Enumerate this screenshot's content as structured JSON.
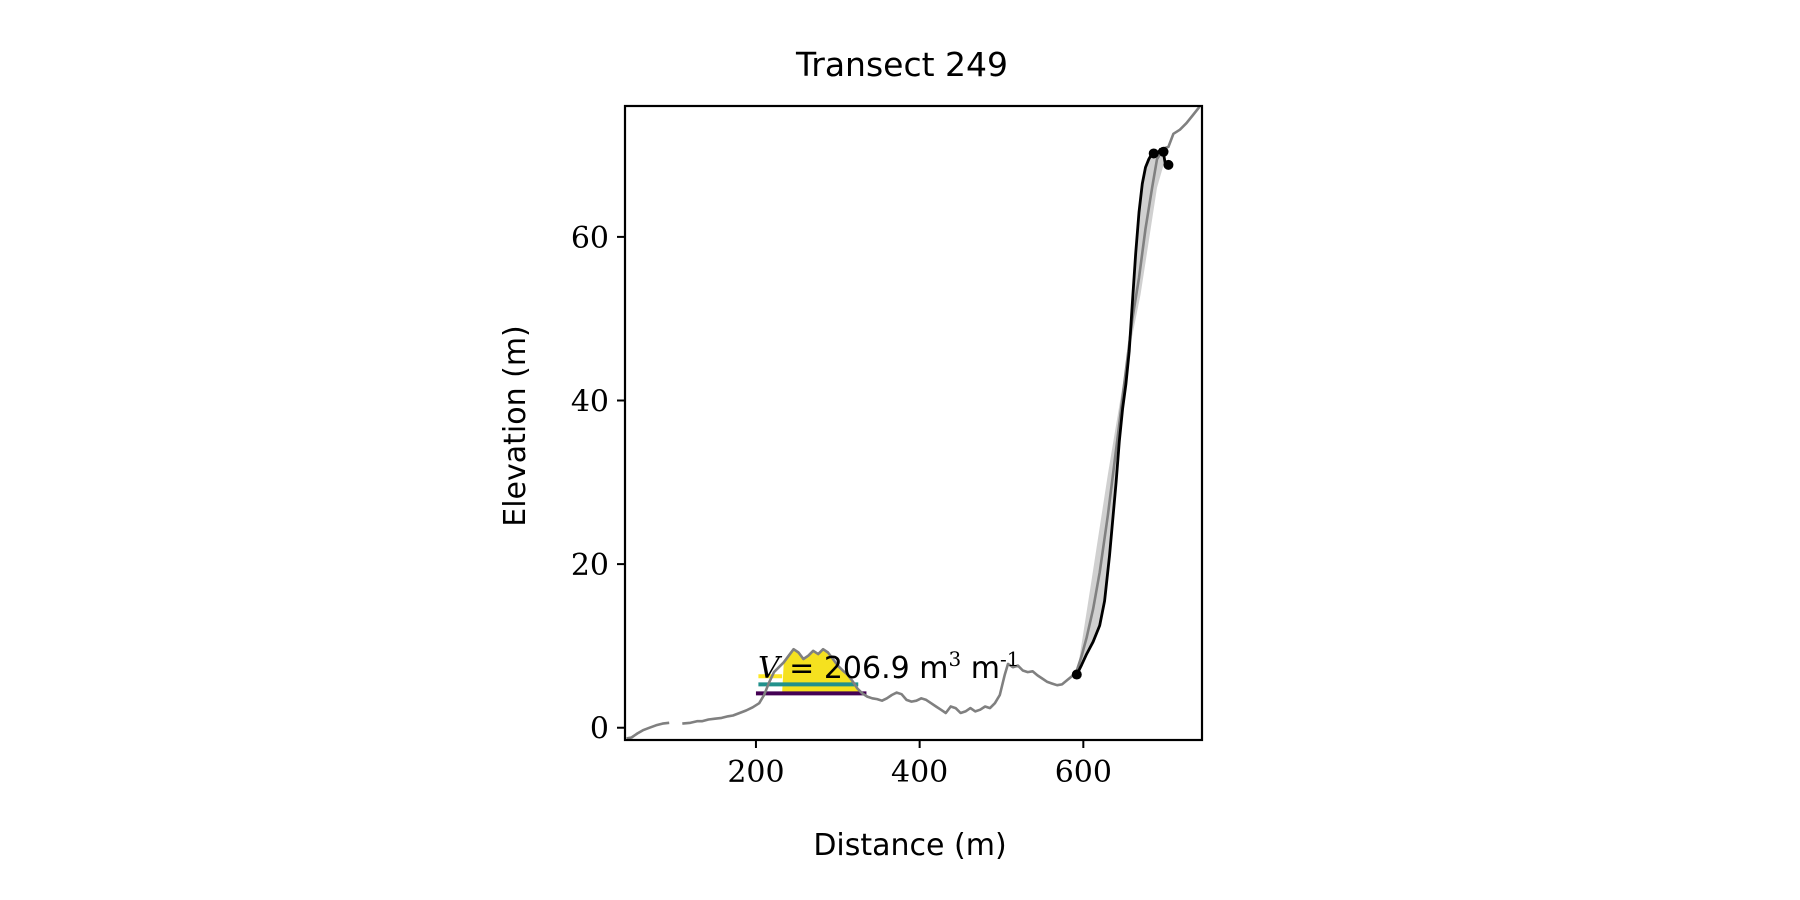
{
  "chart_data": {
    "type": "line",
    "title": "Transect 249",
    "xlabel": "Distance (m)",
    "ylabel": "Elevation (m)",
    "xlim": [
      40,
      745
    ],
    "ylim": [
      -1.5,
      76
    ],
    "xticks": [
      200,
      400,
      600
    ],
    "yticks": [
      0,
      20,
      40,
      60
    ],
    "grid": false,
    "annotation": {
      "symbol": "V",
      "value_text": " = 206.9 m",
      "unit_exp": "3",
      "mid": " m",
      "unit_exp2": "-1",
      "x": 200,
      "y": 6.3
    },
    "colors": {
      "profile": "#808080",
      "cliff": "#000000",
      "fill_area": "#d0d0d0",
      "dune_fill": "#f5e11f",
      "level_yellow": "#fde725",
      "level_teal": "#21918c",
      "level_purple": "#440154"
    },
    "profile_segments": [
      [
        [
          42,
          -1.3
        ],
        [
          48,
          -1.2
        ],
        [
          55,
          -0.7
        ],
        [
          62,
          -0.3
        ],
        [
          70,
          0
        ],
        [
          78,
          0.3
        ],
        [
          86,
          0.5
        ],
        [
          94,
          0.6
        ]
      ],
      [
        [
          110,
          0.5
        ],
        [
          120,
          0.6
        ],
        [
          128,
          0.8
        ],
        [
          134,
          0.8
        ],
        [
          142,
          1
        ],
        [
          150,
          1.1
        ],
        [
          158,
          1.2
        ],
        [
          166,
          1.4
        ],
        [
          172,
          1.5
        ],
        [
          180,
          1.8
        ],
        [
          188,
          2.1
        ],
        [
          196,
          2.5
        ],
        [
          204,
          3
        ],
        [
          210,
          4
        ],
        [
          216,
          5.5
        ],
        [
          222,
          6.8
        ],
        [
          228,
          7.4
        ],
        [
          234,
          8
        ],
        [
          240,
          8.8
        ],
        [
          246,
          9.6
        ],
        [
          252,
          9.2
        ],
        [
          258,
          8.4
        ],
        [
          264,
          8.8
        ],
        [
          270,
          9.4
        ],
        [
          276,
          9
        ],
        [
          282,
          9.6
        ],
        [
          288,
          9.2
        ],
        [
          294,
          8.4
        ],
        [
          300,
          7.6
        ],
        [
          306,
          7
        ],
        [
          312,
          6.5
        ],
        [
          318,
          5.7
        ],
        [
          324,
          4.8
        ],
        [
          330,
          4.2
        ],
        [
          336,
          3.8
        ],
        [
          342,
          3.6
        ],
        [
          348,
          3.5
        ],
        [
          354,
          3.3
        ],
        [
          360,
          3.6
        ],
        [
          366,
          4
        ],
        [
          372,
          4.3
        ],
        [
          378,
          4.1
        ],
        [
          384,
          3.4
        ],
        [
          390,
          3.2
        ],
        [
          396,
          3.3
        ],
        [
          402,
          3.6
        ],
        [
          408,
          3.4
        ],
        [
          414,
          3
        ],
        [
          420,
          2.6
        ],
        [
          426,
          2.2
        ],
        [
          432,
          1.8
        ],
        [
          438,
          2.6
        ],
        [
          444,
          2.4
        ],
        [
          450,
          1.8
        ],
        [
          456,
          2
        ],
        [
          462,
          2.4
        ],
        [
          468,
          2
        ],
        [
          474,
          2.2
        ],
        [
          480,
          2.6
        ],
        [
          486,
          2.4
        ],
        [
          492,
          3
        ],
        [
          498,
          4
        ],
        [
          504,
          6.5
        ],
        [
          508,
          7.8
        ],
        [
          514,
          7.4
        ],
        [
          520,
          7.6
        ],
        [
          526,
          7
        ],
        [
          532,
          6.8
        ],
        [
          538,
          6.9
        ],
        [
          544,
          6.4
        ],
        [
          550,
          6
        ],
        [
          556,
          5.6
        ],
        [
          562,
          5.4
        ],
        [
          568,
          5.2
        ],
        [
          574,
          5.3
        ],
        [
          580,
          5.8
        ],
        [
          586,
          6.3
        ],
        [
          592,
          7
        ],
        [
          598,
          8.8
        ],
        [
          604,
          11
        ],
        [
          612,
          14.5
        ],
        [
          620,
          19
        ],
        [
          630,
          26
        ],
        [
          640,
          34
        ],
        [
          650,
          42
        ],
        [
          660,
          50
        ],
        [
          668,
          55
        ],
        [
          676,
          61
        ],
        [
          684,
          66
        ],
        [
          690,
          69.5
        ],
        [
          698,
          70.8
        ],
        [
          704,
          71
        ],
        [
          710,
          72.6
        ],
        [
          718,
          73.1
        ],
        [
          726,
          73.9
        ],
        [
          734,
          74.9
        ],
        [
          742,
          75.9
        ]
      ]
    ],
    "cliff_line": [
      [
        592,
        6.5
      ],
      [
        598,
        7.7
      ],
      [
        604,
        9
      ],
      [
        612,
        10.5
      ],
      [
        620,
        12.5
      ],
      [
        626,
        15.5
      ],
      [
        632,
        21
      ],
      [
        636,
        25.5
      ],
      [
        640,
        30
      ],
      [
        644,
        35
      ],
      [
        648,
        39
      ],
      [
        652,
        42
      ],
      [
        656,
        46
      ],
      [
        660,
        52
      ],
      [
        664,
        58
      ],
      [
        668,
        63
      ],
      [
        672,
        66.5
      ],
      [
        676,
        68.5
      ],
      [
        680,
        69.5
      ],
      [
        684,
        70.2
      ],
      [
        686,
        70.2
      ],
      [
        690,
        70.1
      ],
      [
        694,
        70.7
      ],
      [
        698,
        70.2
      ],
      [
        700,
        69
      ],
      [
        704,
        68.8
      ]
    ],
    "cliff_points": [
      [
        592,
        6.5
      ],
      [
        686,
        70.2
      ],
      [
        698,
        70.4
      ],
      [
        704,
        68.8
      ]
    ],
    "cliff_area_upper": [
      [
        592,
        6.5
      ],
      [
        610,
        18
      ],
      [
        630,
        31
      ],
      [
        650,
        43
      ],
      [
        670,
        53
      ],
      [
        690,
        66
      ],
      [
        700,
        69.5
      ],
      [
        704,
        68.8
      ]
    ],
    "dune_fill": [
      [
        232,
        4.2
      ],
      [
        234,
        8
      ],
      [
        240,
        8.8
      ],
      [
        246,
        9.6
      ],
      [
        252,
        9.2
      ],
      [
        258,
        8.4
      ],
      [
        264,
        8.8
      ],
      [
        270,
        9.4
      ],
      [
        276,
        9
      ],
      [
        282,
        9.6
      ],
      [
        288,
        9.2
      ],
      [
        294,
        8.4
      ],
      [
        300,
        7.6
      ],
      [
        306,
        7
      ],
      [
        312,
        6.5
      ],
      [
        318,
        5.7
      ],
      [
        324,
        4.8
      ],
      [
        326,
        4.2
      ]
    ],
    "levels": [
      {
        "color": "#fde725",
        "y": 6.3,
        "x0": 203,
        "x1": 232
      },
      {
        "color": "#21918c",
        "y": 5.3,
        "x0": 203,
        "x1": 325
      },
      {
        "color": "#440154",
        "y": 4.2,
        "x0": 200,
        "x1": 335
      }
    ]
  }
}
